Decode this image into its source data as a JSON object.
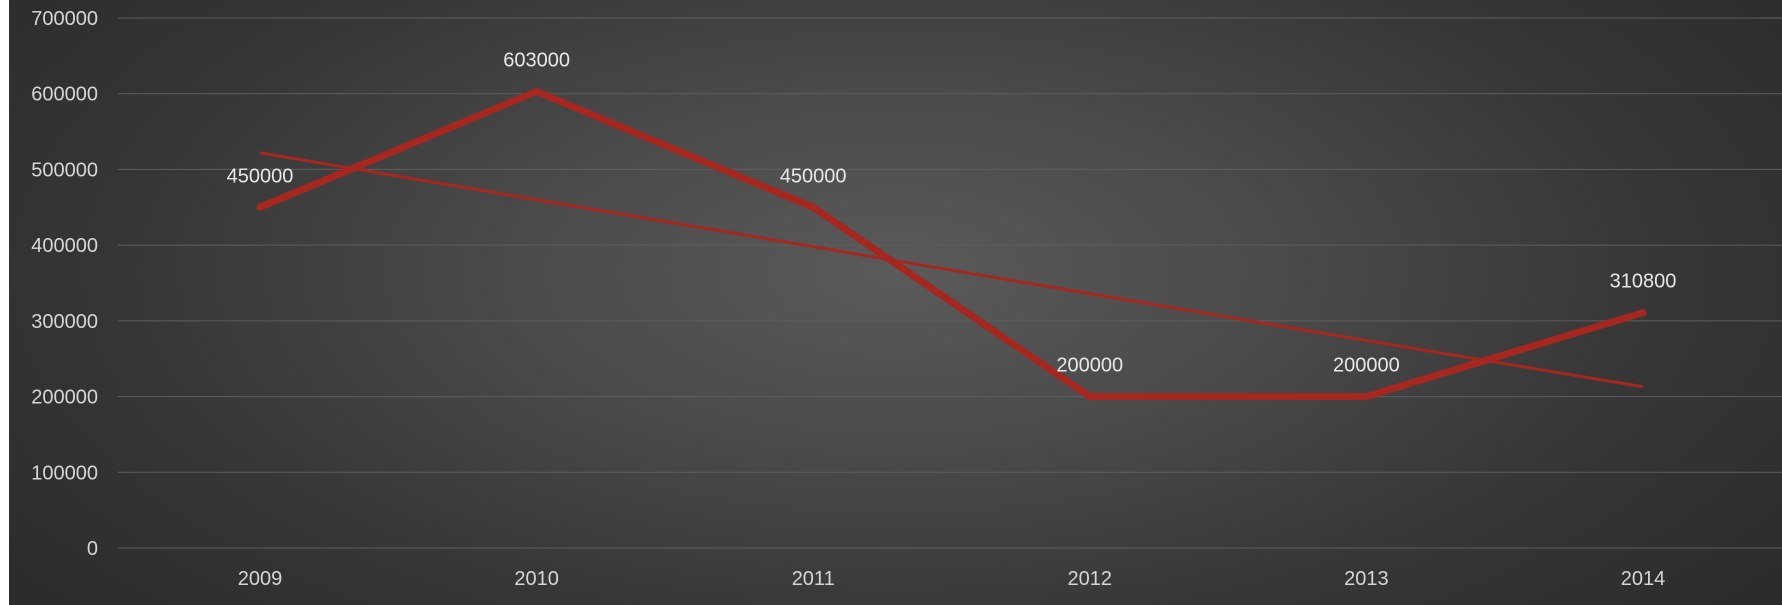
{
  "chart_data": {
    "type": "line",
    "title": "",
    "xlabel": "",
    "ylabel": "",
    "categories": [
      "2009",
      "2010",
      "2011",
      "2012",
      "2013",
      "2014"
    ],
    "series": [
      {
        "values": [
          450000,
          603000,
          450000,
          200000,
          200000,
          310800
        ],
        "color": "#a5271f",
        "data_labels": [
          "450000",
          "603000",
          "450000",
          "200000",
          "200000",
          "310800"
        ]
      }
    ],
    "trendline": {
      "type": "linear",
      "values": [
        522000,
        460000,
        398000,
        336000,
        274000,
        213000
      ],
      "color": "#a5271f"
    },
    "ylim": [
      0,
      700000
    ],
    "y_ticks": [
      0,
      100000,
      200000,
      300000,
      400000,
      500000,
      600000,
      700000
    ],
    "y_tick_labels": [
      "0",
      "100000",
      "200000",
      "300000",
      "400000",
      "500000",
      "600000",
      "700000"
    ],
    "grid": true,
    "legend": "none",
    "colors": {
      "background_center": "#5a5a5a",
      "background_edge": "#2c2c2c",
      "grid": "#5e5e5e",
      "text": "#d6d6d6",
      "series": "#a5271f"
    }
  }
}
